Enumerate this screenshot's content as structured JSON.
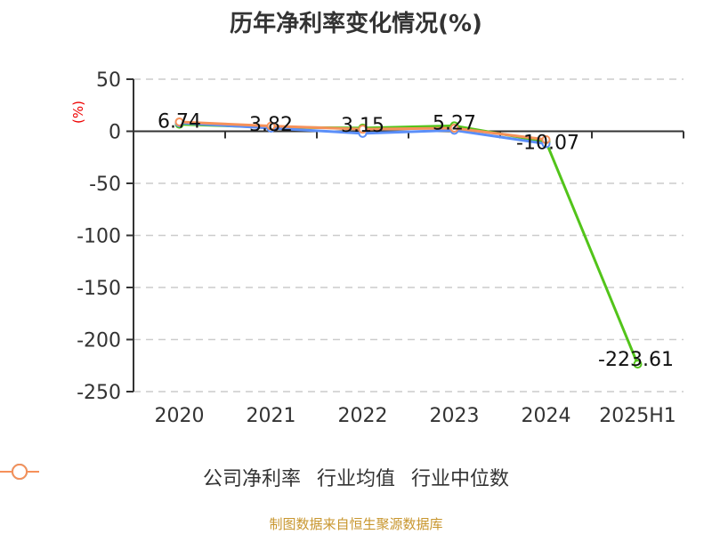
{
  "title": "历年净利率变化情况(%)",
  "y_unit_label": "(%)",
  "source": "制图数据来自恒生聚源数据库",
  "legend": [
    {
      "label": "公司净利率",
      "color": "#52c41a"
    },
    {
      "label": "行业均值",
      "color": "#5b8ff9"
    },
    {
      "label": "行业中位数",
      "color": "#f6915a"
    }
  ],
  "chart_data": {
    "type": "line",
    "title": "历年净利率变化情况(%)",
    "xlabel": "",
    "ylabel": "(%)",
    "categories": [
      "2020",
      "2021",
      "2022",
      "2023",
      "2024",
      "2025H1"
    ],
    "ylim": [
      -250,
      50
    ],
    "yticks": [
      50,
      0,
      -50,
      -100,
      -150,
      -200,
      -250
    ],
    "grid": "horizontal dashed",
    "legend_position": "bottom",
    "series": [
      {
        "name": "公司净利率",
        "color": "#52c41a",
        "values": [
          6.74,
          3.82,
          3.15,
          5.27,
          -10.07,
          -223.61
        ],
        "labels": [
          "6.74",
          "3.82",
          "3.15",
          "5.27",
          "-10.07",
          "-223.61"
        ]
      },
      {
        "name": "行业均值",
        "color": "#5b8ff9",
        "values": [
          8,
          3,
          -2,
          1,
          -12,
          null
        ]
      },
      {
        "name": "行业中位数",
        "color": "#f6915a",
        "values": [
          9,
          5,
          2,
          3,
          -8,
          null
        ]
      }
    ]
  }
}
